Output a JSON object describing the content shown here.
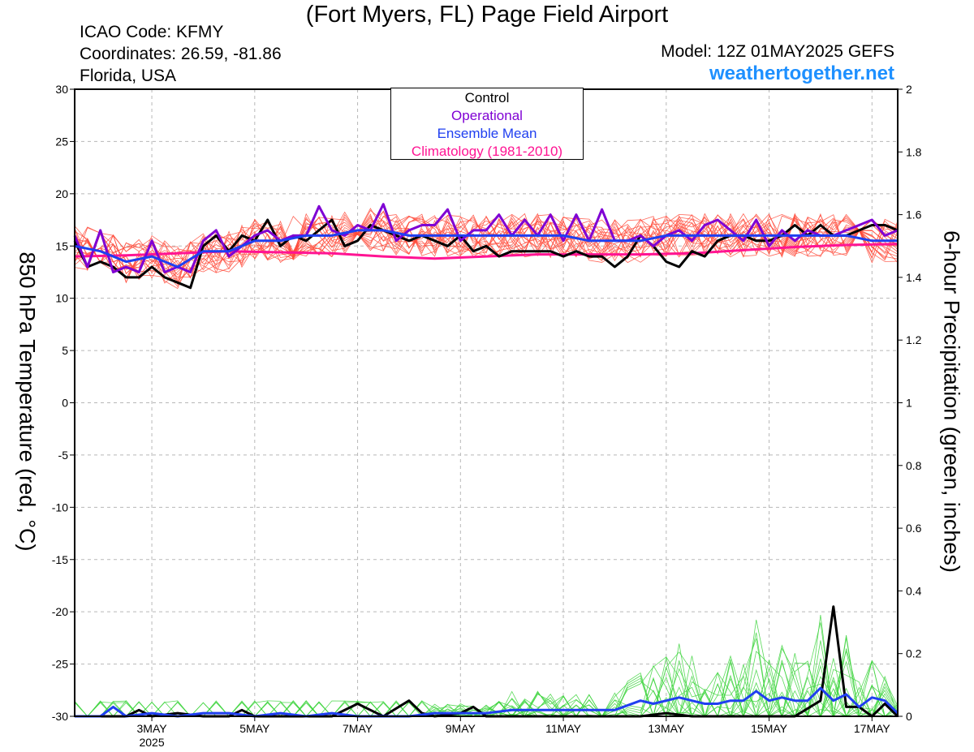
{
  "header": {
    "title": "(Fort Myers, FL) Page Field Airport",
    "icao": "ICAO Code: KFMY",
    "coords": "Coordinates: 26.59, -81.86",
    "location": "Florida, USA",
    "model": "Model: 12Z 01MAY2025 GEFS",
    "site": "weathertogether.net"
  },
  "legend": {
    "control": "Control",
    "operational": "Operational",
    "mean": "Ensemble Mean",
    "clim": "Climatology (1981-2010)"
  },
  "colors": {
    "control": "#000000",
    "operational": "#7f00d4",
    "mean": "#1f3ff0",
    "clim": "#ff1493",
    "members_temp": "#ff4a3a",
    "members_precip": "#3cd43c",
    "site": "#1e90ff"
  },
  "chart_data": {
    "type": "line",
    "x_unit": "days after 12Z 01MAY2025 (6-hour steps)",
    "x_ticks": [
      {
        "t": 1.5,
        "label": "3MAY",
        "sub": "2025"
      },
      {
        "t": 3.5,
        "label": "5MAY",
        "sub": ""
      },
      {
        "t": 5.5,
        "label": "7MAY",
        "sub": ""
      },
      {
        "t": 7.5,
        "label": "9MAY",
        "sub": ""
      },
      {
        "t": 9.5,
        "label": "11MAY",
        "sub": ""
      },
      {
        "t": 11.5,
        "label": "13MAY",
        "sub": ""
      },
      {
        "t": 13.5,
        "label": "15MAY",
        "sub": ""
      },
      {
        "t": 15.5,
        "label": "17MAY",
        "sub": ""
      }
    ],
    "xlim": [
      0,
      16
    ],
    "ylim_left": [
      -30,
      30
    ],
    "yticks_left": [
      30,
      25,
      20,
      15,
      10,
      5,
      0,
      -5,
      -10,
      -15,
      -20,
      -25,
      -30
    ],
    "ylabel_left": "850 hPa Temperature (red, °C)",
    "ylim_right": [
      0,
      2
    ],
    "yticks_right": [
      "2",
      "1.8",
      "1.6",
      "1.4",
      "1.2",
      "1",
      "0.8",
      "0.6",
      "0.4",
      "0.2",
      "0"
    ],
    "ylabel_right": "6-hour Precipitation (green, inches)",
    "grid": true,
    "legend_position": "top-center",
    "series": [
      {
        "name": "Control",
        "axis": "left",
        "points": [
          [
            0,
            15.5
          ],
          [
            0.25,
            13.0
          ],
          [
            0.5,
            13.5
          ],
          [
            0.75,
            13.0
          ],
          [
            1.0,
            12.0
          ],
          [
            1.25,
            12.0
          ],
          [
            1.5,
            13.0
          ],
          [
            1.75,
            12.0
          ],
          [
            2.0,
            11.5
          ],
          [
            2.25,
            11.0
          ],
          [
            2.5,
            15.0
          ],
          [
            2.75,
            16.0
          ],
          [
            3.0,
            14.5
          ],
          [
            3.25,
            16.0
          ],
          [
            3.5,
            15.5
          ],
          [
            3.75,
            17.5
          ],
          [
            4.0,
            15.0
          ],
          [
            4.25,
            16.0
          ],
          [
            4.5,
            15.5
          ],
          [
            4.75,
            16.5
          ],
          [
            5.0,
            17.5
          ],
          [
            5.25,
            15.0
          ],
          [
            5.5,
            15.5
          ],
          [
            5.75,
            17.0
          ],
          [
            6.0,
            16.5
          ],
          [
            6.25,
            16.0
          ],
          [
            6.5,
            15.5
          ],
          [
            6.75,
            16.0
          ],
          [
            7.0,
            15.5
          ],
          [
            7.25,
            15.0
          ],
          [
            7.5,
            16.0
          ],
          [
            7.75,
            14.5
          ],
          [
            8.0,
            15.0
          ],
          [
            8.25,
            14.0
          ],
          [
            8.5,
            14.5
          ],
          [
            8.75,
            14.5
          ],
          [
            9.0,
            14.5
          ],
          [
            9.25,
            14.5
          ],
          [
            9.5,
            14.0
          ],
          [
            9.75,
            14.5
          ],
          [
            10.0,
            14.0
          ],
          [
            10.25,
            14.0
          ],
          [
            10.5,
            13.0
          ],
          [
            10.75,
            14.0
          ],
          [
            11.0,
            16.0
          ],
          [
            11.25,
            15.0
          ],
          [
            11.5,
            13.5
          ],
          [
            11.75,
            13.0
          ],
          [
            12.0,
            14.5
          ],
          [
            12.25,
            14.0
          ],
          [
            12.5,
            15.5
          ],
          [
            12.75,
            16.0
          ],
          [
            13.0,
            16.0
          ],
          [
            13.25,
            15.5
          ],
          [
            13.5,
            15.5
          ],
          [
            13.75,
            16.0
          ],
          [
            14.0,
            17.0
          ],
          [
            14.25,
            16.0
          ],
          [
            14.5,
            17.0
          ],
          [
            14.75,
            16.0
          ],
          [
            15.0,
            16.0
          ],
          [
            15.25,
            16.5
          ],
          [
            15.5,
            17.0
          ],
          [
            15.75,
            17.0
          ],
          [
            16.0,
            16.5
          ]
        ]
      },
      {
        "name": "Operational",
        "axis": "left",
        "points": [
          [
            0,
            16.0
          ],
          [
            0.25,
            13.0
          ],
          [
            0.5,
            16.5
          ],
          [
            0.75,
            12.5
          ],
          [
            1.0,
            13.0
          ],
          [
            1.25,
            12.5
          ],
          [
            1.5,
            15.5
          ],
          [
            1.75,
            12.5
          ],
          [
            2.0,
            13.0
          ],
          [
            2.25,
            12.5
          ],
          [
            2.5,
            15.5
          ],
          [
            2.75,
            16.5
          ],
          [
            3.0,
            14.0
          ],
          [
            3.25,
            15.0
          ],
          [
            3.5,
            16.0
          ],
          [
            3.75,
            16.5
          ],
          [
            4.0,
            15.5
          ],
          [
            4.25,
            16.0
          ],
          [
            4.5,
            16.0
          ],
          [
            4.75,
            18.8
          ],
          [
            5.0,
            16.5
          ],
          [
            5.25,
            16.0
          ],
          [
            5.5,
            17.0
          ],
          [
            5.75,
            16.5
          ],
          [
            6.0,
            19.0
          ],
          [
            6.25,
            15.5
          ],
          [
            6.5,
            16.5
          ],
          [
            6.75,
            17.0
          ],
          [
            7.0,
            17.0
          ],
          [
            7.25,
            18.5
          ],
          [
            7.5,
            15.5
          ],
          [
            7.75,
            16.5
          ],
          [
            8.0,
            16.5
          ],
          [
            8.25,
            18.0
          ],
          [
            8.5,
            16.0
          ],
          [
            8.75,
            17.5
          ],
          [
            9.0,
            16.0
          ],
          [
            9.25,
            18.0
          ],
          [
            9.5,
            15.5
          ],
          [
            9.75,
            18.0
          ],
          [
            10.0,
            15.5
          ],
          [
            10.25,
            18.5
          ],
          [
            10.5,
            15.5
          ],
          [
            10.75,
            15.5
          ],
          [
            11.0,
            16.0
          ],
          [
            11.25,
            15.0
          ],
          [
            11.5,
            16.0
          ],
          [
            11.75,
            16.5
          ],
          [
            12.0,
            15.5
          ],
          [
            12.25,
            17.0
          ],
          [
            12.5,
            17.5
          ],
          [
            12.75,
            16.5
          ],
          [
            13.0,
            15.5
          ],
          [
            13.25,
            17.5
          ],
          [
            13.5,
            15.0
          ],
          [
            13.75,
            16.5
          ],
          [
            14.0,
            15.5
          ],
          [
            14.25,
            16.5
          ],
          [
            14.5,
            16.0
          ],
          [
            14.75,
            16.0
          ],
          [
            15.0,
            16.5
          ],
          [
            15.25,
            17.0
          ],
          [
            15.5,
            17.5
          ],
          [
            15.75,
            16.0
          ],
          [
            16.0,
            16.5
          ]
        ]
      },
      {
        "name": "Ensemble Mean",
        "axis": "left",
        "points": [
          [
            0,
            15.0
          ],
          [
            0.5,
            14.5
          ],
          [
            1.0,
            13.5
          ],
          [
            1.5,
            14.0
          ],
          [
            2.0,
            13.0
          ],
          [
            2.5,
            14.5
          ],
          [
            3.0,
            14.5
          ],
          [
            3.5,
            15.5
          ],
          [
            4.0,
            15.5
          ],
          [
            4.5,
            16.0
          ],
          [
            5.0,
            16.0
          ],
          [
            5.5,
            16.5
          ],
          [
            6.0,
            16.5
          ],
          [
            6.5,
            16.0
          ],
          [
            7.0,
            16.0
          ],
          [
            7.5,
            16.0
          ],
          [
            8.0,
            16.0
          ],
          [
            8.5,
            16.0
          ],
          [
            9.0,
            16.0
          ],
          [
            9.5,
            16.0
          ],
          [
            10.0,
            15.5
          ],
          [
            10.5,
            15.5
          ],
          [
            11.0,
            15.5
          ],
          [
            11.5,
            16.0
          ],
          [
            12.0,
            16.0
          ],
          [
            12.5,
            16.0
          ],
          [
            13.0,
            16.0
          ],
          [
            13.5,
            16.0
          ],
          [
            14.0,
            16.0
          ],
          [
            14.5,
            16.0
          ],
          [
            15.0,
            16.0
          ],
          [
            15.5,
            15.5
          ],
          [
            16.0,
            15.5
          ]
        ]
      },
      {
        "name": "Climatology (1981-2010)",
        "axis": "left",
        "points": [
          [
            0,
            14.0
          ],
          [
            1.0,
            14.1
          ],
          [
            2.0,
            14.3
          ],
          [
            3.0,
            14.5
          ],
          [
            4.0,
            14.4
          ],
          [
            5.0,
            14.3
          ],
          [
            6.0,
            14.0
          ],
          [
            7.0,
            13.8
          ],
          [
            8.0,
            14.0
          ],
          [
            9.0,
            14.2
          ],
          [
            10.0,
            14.2
          ],
          [
            11.0,
            14.2
          ],
          [
            12.0,
            14.3
          ],
          [
            13.0,
            14.6
          ],
          [
            14.0,
            14.9
          ],
          [
            15.0,
            15.1
          ],
          [
            16.0,
            15.2
          ]
        ]
      },
      {
        "name": "Control",
        "axis": "right",
        "points": [
          [
            0,
            0
          ],
          [
            0.5,
            0
          ],
          [
            1.0,
            0.0
          ],
          [
            1.25,
            0.02
          ],
          [
            1.5,
            0
          ],
          [
            2.0,
            0.01
          ],
          [
            2.5,
            0
          ],
          [
            3.0,
            0.0
          ],
          [
            3.25,
            0.02
          ],
          [
            3.5,
            0
          ],
          [
            4.0,
            0.0
          ],
          [
            4.5,
            0
          ],
          [
            5.0,
            0
          ],
          [
            5.5,
            0.04
          ],
          [
            5.75,
            0.02
          ],
          [
            6.0,
            0
          ],
          [
            6.5,
            0.05
          ],
          [
            6.75,
            0.01
          ],
          [
            7.0,
            0.0
          ],
          [
            7.5,
            0.01
          ],
          [
            7.75,
            0.03
          ],
          [
            8.0,
            0
          ],
          [
            9.0,
            0.0
          ],
          [
            10.0,
            0
          ],
          [
            11.0,
            0
          ],
          [
            11.5,
            0.01
          ],
          [
            12.0,
            0
          ],
          [
            13.0,
            0
          ],
          [
            13.5,
            0.0
          ],
          [
            14.0,
            0
          ],
          [
            14.5,
            0.05
          ],
          [
            14.75,
            0.35
          ],
          [
            15.0,
            0.03
          ],
          [
            15.25,
            0.03
          ],
          [
            15.5,
            0
          ],
          [
            15.75,
            0.04
          ],
          [
            16.0,
            0
          ]
        ]
      },
      {
        "name": "Ensemble Mean",
        "axis": "right",
        "points": [
          [
            0,
            0
          ],
          [
            0.5,
            0.0
          ],
          [
            0.75,
            0.03
          ],
          [
            1.0,
            0.0
          ],
          [
            1.5,
            0.01
          ],
          [
            2.0,
            0
          ],
          [
            2.5,
            0.01
          ],
          [
            3.0,
            0.01
          ],
          [
            3.5,
            0.0
          ],
          [
            4.0,
            0.01
          ],
          [
            4.5,
            0.0
          ],
          [
            5.0,
            0.01
          ],
          [
            5.5,
            0.0
          ],
          [
            6.0,
            0.0
          ],
          [
            6.5,
            0.0
          ],
          [
            7.0,
            0.01
          ],
          [
            7.5,
            0.01
          ],
          [
            8.0,
            0.01
          ],
          [
            8.5,
            0.02
          ],
          [
            9.0,
            0.02
          ],
          [
            9.5,
            0.02
          ],
          [
            10.0,
            0.02
          ],
          [
            10.5,
            0.02
          ],
          [
            11.0,
            0.05
          ],
          [
            11.25,
            0.04
          ],
          [
            11.5,
            0.05
          ],
          [
            11.75,
            0.06
          ],
          [
            12.0,
            0.05
          ],
          [
            12.25,
            0.04
          ],
          [
            12.5,
            0.04
          ],
          [
            12.75,
            0.05
          ],
          [
            13.0,
            0.05
          ],
          [
            13.25,
            0.08
          ],
          [
            13.5,
            0.05
          ],
          [
            13.75,
            0.06
          ],
          [
            14.0,
            0.05
          ],
          [
            14.25,
            0.05
          ],
          [
            14.5,
            0.09
          ],
          [
            14.75,
            0.05
          ],
          [
            15.0,
            0.07
          ],
          [
            15.25,
            0.03
          ],
          [
            15.5,
            0.06
          ],
          [
            15.75,
            0.05
          ],
          [
            16.0,
            0.01
          ]
        ]
      }
    ]
  }
}
